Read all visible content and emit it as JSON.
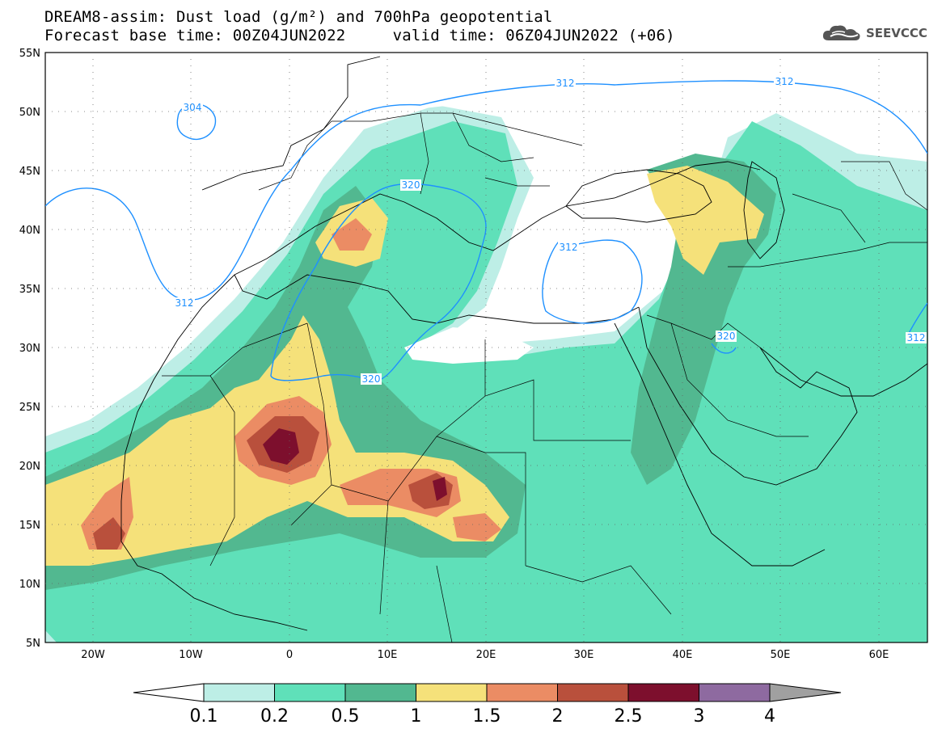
{
  "title": {
    "line1": "DREAM8-assim: Dust load (g/m²) and 700hPa geopotential",
    "line2": "Forecast base time: 00Z04JUN2022     valid time: 06Z04JUN2022 (+06)"
  },
  "logo": {
    "text": "SEEVCCC",
    "icon": "cloud-icon"
  },
  "axes": {
    "lat_ticks": [
      "55N",
      "50N",
      "45N",
      "40N",
      "35N",
      "30N",
      "25N",
      "20N",
      "15N",
      "10N",
      "5N"
    ],
    "lon_ticks": [
      "20W",
      "10W",
      "0",
      "10E",
      "20E",
      "30E",
      "40E",
      "50E",
      "60E"
    ]
  },
  "contours": {
    "labels": [
      "304",
      "312",
      "312",
      "320",
      "312",
      "320",
      "320",
      "312",
      "312"
    ]
  },
  "colorbar": {
    "values": [
      "0.1",
      "0.2",
      "0.5",
      "1",
      "1.5",
      "2",
      "2.5",
      "3",
      "4"
    ],
    "colors": {
      "under": "#ffffff",
      "bins": [
        "#bdeee6",
        "#5fe0b9",
        "#52b890",
        "#f5e17a",
        "#eb8c64",
        "#b9503c",
        "#7d0f2d",
        "#8e6aa0"
      ],
      "over": "#a0a0a0"
    }
  },
  "colors": {
    "coast": "#000000",
    "isoline": "#1e90ff",
    "frame": "#000000"
  }
}
